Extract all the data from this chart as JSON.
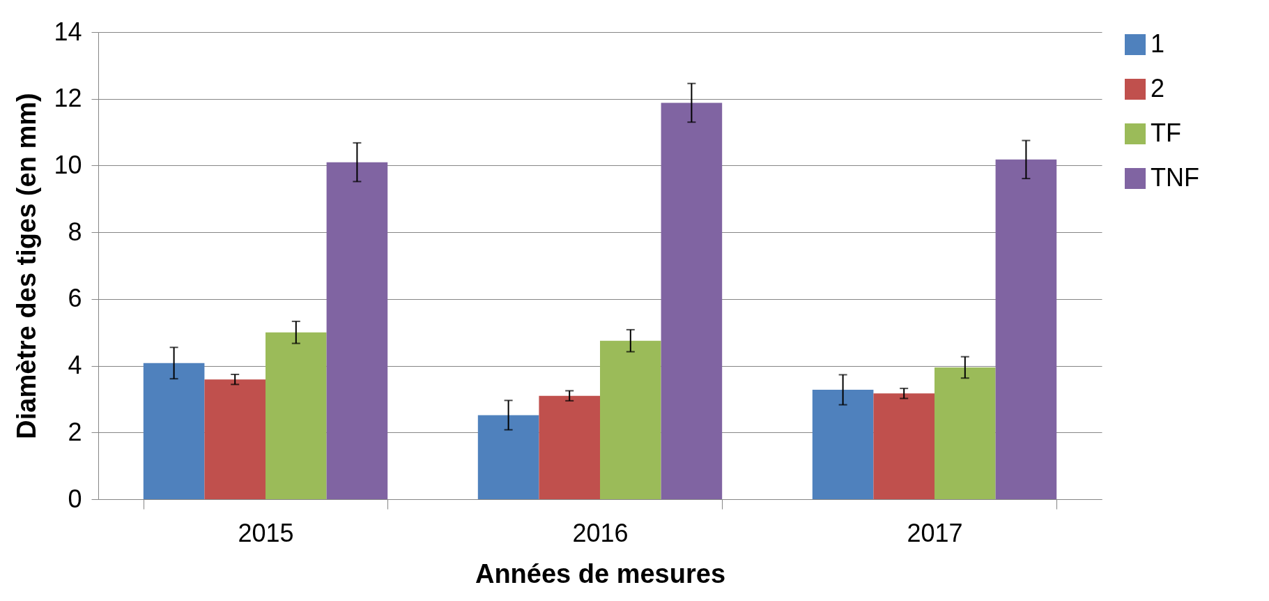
{
  "chart_data": {
    "type": "bar",
    "xlabel": "Années de mesures",
    "ylabel": "Diamètre des tiges (en mm)",
    "categories": [
      "2015",
      "2016",
      "2017"
    ],
    "series": [
      {
        "name": "1",
        "color": "#4f81bd",
        "values": [
          4.08,
          2.52,
          3.28
        ],
        "errors": [
          0.47,
          0.44,
          0.45
        ]
      },
      {
        "name": "2",
        "color": "#c0504d",
        "values": [
          3.59,
          3.1,
          3.17
        ],
        "errors": [
          0.15,
          0.15,
          0.15
        ]
      },
      {
        "name": "TF",
        "color": "#9bbb59",
        "values": [
          5.0,
          4.75,
          3.95
        ],
        "errors": [
          0.33,
          0.33,
          0.32
        ]
      },
      {
        "name": "TNF",
        "color": "#8064a2",
        "values": [
          10.1,
          11.88,
          10.18
        ],
        "errors": [
          0.58,
          0.58,
          0.57
        ]
      }
    ],
    "ylim": [
      0,
      14
    ],
    "yticks": [
      0,
      2,
      4,
      6,
      8,
      10,
      12,
      14
    ],
    "grid": "y",
    "legend": "right"
  }
}
